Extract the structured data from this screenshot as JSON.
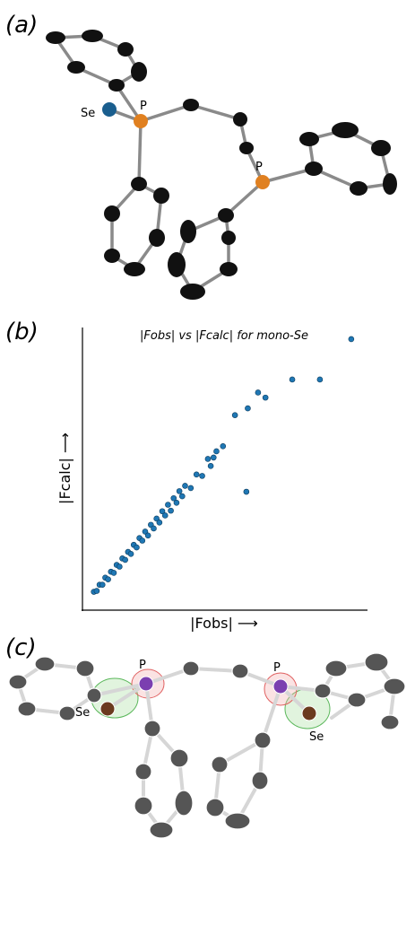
{
  "panels": [
    {
      "label": "(a)",
      "atoms": [
        "Se",
        "P",
        "P"
      ]
    },
    {
      "label": "(b)"
    },
    {
      "label": "(c)",
      "atoms": [
        "P",
        "Se",
        "P",
        "Se"
      ]
    }
  ],
  "chart_data": {
    "type": "scatter",
    "title": "|Fobs| vs |Fcalc| for mono-Se",
    "x_label": "|Fobs| ⟶",
    "y_label": "|Fcalc| ⟶",
    "color": "#1f77b4",
    "xlim": [
      0,
      100
    ],
    "ylim": [
      0,
      100
    ],
    "x": [
      4,
      5,
      6,
      7,
      8,
      9,
      10,
      11,
      12,
      13,
      14,
      15,
      16,
      17,
      18,
      19,
      20,
      21,
      22,
      23,
      24,
      25,
      26,
      27,
      28,
      29,
      30,
      31,
      32,
      33,
      34,
      35,
      36,
      38,
      40,
      42,
      44,
      45,
      47,
      46,
      49.3,
      53.5,
      58,
      61.6,
      57.5,
      64.2,
      73.6,
      83.3,
      94.3
    ],
    "y": [
      6.5,
      6.8,
      9.0,
      9.0,
      11.5,
      10.9,
      13.6,
      13.2,
      16.0,
      15.4,
      18.3,
      17.8,
      20.6,
      19.9,
      23.1,
      22.2,
      25.5,
      24.6,
      27.8,
      26.4,
      30.2,
      28.9,
      32.4,
      31.0,
      35.0,
      33.5,
      37.3,
      35.2,
      39.6,
      38.0,
      42.1,
      40.3,
      44.0,
      43.2,
      48.0,
      47.5,
      53.5,
      51.0,
      56.2,
      54,
      58,
      69,
      71.4,
      77,
      41.9,
      75.2,
      81.6,
      81.6,
      95.9
    ]
  }
}
